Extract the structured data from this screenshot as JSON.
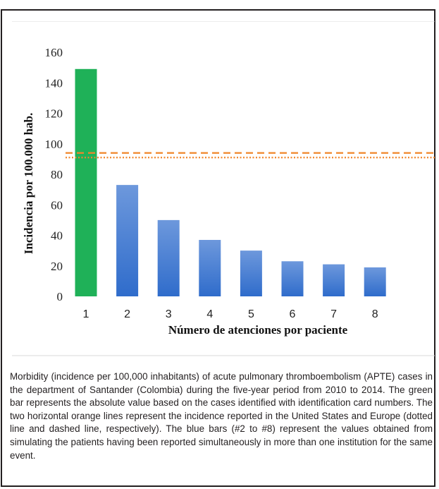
{
  "chart_data": {
    "type": "bar",
    "categories": [
      "1",
      "2",
      "3",
      "4",
      "5",
      "6",
      "7",
      "8"
    ],
    "values": [
      149,
      73,
      50,
      37,
      30,
      23,
      21,
      19
    ],
    "bar_colors": [
      "#1fb158",
      "#3f78d4",
      "#3f78d4",
      "#3f78d4",
      "#3f78d4",
      "#3f78d4",
      "#3f78d4",
      "#3f78d4"
    ],
    "title": "",
    "xlabel": "Número de atenciones por paciente",
    "ylabel": "Incidencia por 100.000 hab.",
    "ylim": [
      0,
      160
    ],
    "yticks": [
      0,
      20,
      40,
      60,
      80,
      100,
      120,
      140,
      160
    ],
    "grid": false,
    "reference_lines": [
      {
        "label": "Europe",
        "value": 94,
        "style": "dashed",
        "color": "#f0862b"
      },
      {
        "label": "United States",
        "value": 91,
        "style": "dotted",
        "color": "#f0862b"
      }
    ]
  },
  "caption": "Morbidity (incidence per 100,000 inhabitants) of acute pulmonary thromboembolism (APTE) cases in the department of Santander (Colombia) during the five-year period from 2010 to 2014. The green bar represents the absolute value based on the cases identified with identification card numbers. The two horizontal orange lines represent the incidence reported in the United States and Europe (dotted line and dashed line, respectively). The blue bars (#2 to #8) represent the values obtained from simulating the patients having been reported simultaneously in more than one institution for the same event."
}
